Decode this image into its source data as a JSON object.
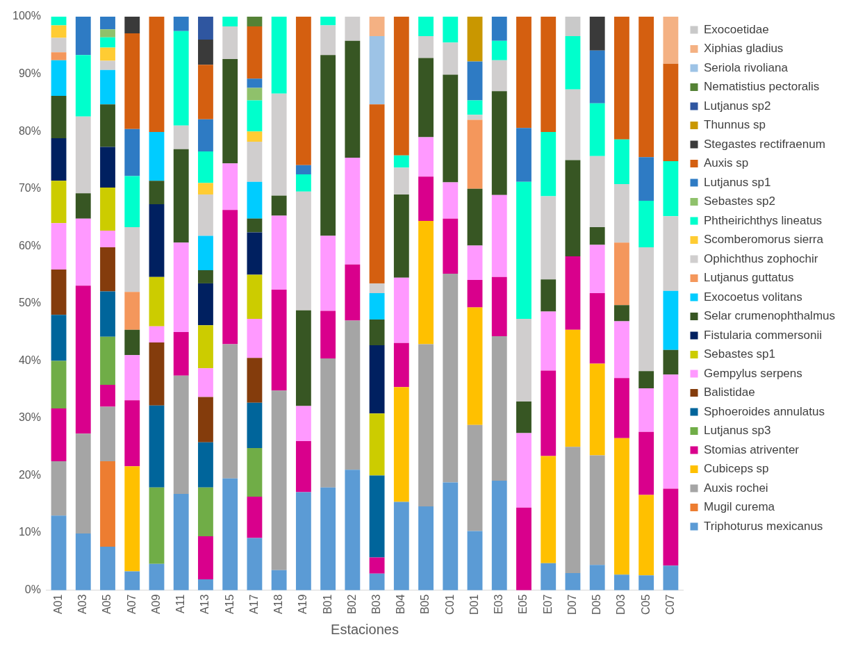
{
  "chart_data": {
    "type": "bar",
    "stacked": true,
    "xlabel": "Estaciones",
    "legend": "right",
    "grid": false,
    "categories": [
      "A01",
      "A03",
      "A05",
      "A07",
      "A09",
      "A11",
      "A13",
      "A15",
      "A17",
      "A18",
      "A19",
      "B01",
      "B02",
      "B03",
      "B04",
      "B05",
      "C01",
      "D01",
      "E03",
      "E05",
      "E07",
      "D07",
      "D05",
      "D03",
      "C05",
      "C07"
    ],
    "ylim": [
      0,
      100
    ],
    "yticks": [
      {
        "value": 0,
        "label": "0%"
      },
      {
        "value": 10,
        "label": "10%"
      },
      {
        "value": 20,
        "label": "20%"
      },
      {
        "value": 30,
        "label": "30%"
      },
      {
        "value": 40,
        "label": "40%"
      },
      {
        "value": 50,
        "label": "50%"
      },
      {
        "value": 60,
        "label": "60%"
      },
      {
        "value": 70,
        "label": "70%"
      },
      {
        "value": 80,
        "label": "80%"
      },
      {
        "value": 90,
        "label": "90%"
      },
      {
        "value": 100,
        "label": "100%"
      }
    ],
    "series": [
      {
        "name": "Triphoturus mexicanus",
        "color": "#5b9bd5",
        "values": [
          13,
          9.9,
          7.6,
          3.3,
          4.6,
          16.8,
          1.9,
          19.5,
          9.1,
          3.5,
          17.1,
          17.9,
          21,
          2.9,
          15.4,
          14.6,
          18.8,
          10.3,
          19.1,
          null,
          4.7,
          3,
          4.4,
          2.7,
          2.6,
          4.3
        ]
      },
      {
        "name": "Mugil curema",
        "color": "#ed7d31",
        "values": [
          null,
          null,
          14.9,
          null,
          null,
          null,
          null,
          null,
          null,
          null,
          null,
          null,
          null,
          null,
          null,
          null,
          null,
          null,
          null,
          null,
          null,
          null,
          null,
          null,
          null,
          null
        ]
      },
      {
        "name": "Auxis rochei",
        "color": "#a5a5a5",
        "values": [
          9.5,
          17.4,
          9.5,
          null,
          null,
          20.6,
          null,
          23.4,
          null,
          31.3,
          null,
          22.5,
          26,
          null,
          null,
          28.3,
          36.4,
          18.5,
          25.2,
          null,
          null,
          22,
          19.1,
          null,
          null,
          null
        ]
      },
      {
        "name": "Cubiceps sp",
        "color": "#ffc000",
        "values": [
          null,
          null,
          null,
          18.3,
          null,
          null,
          null,
          null,
          null,
          null,
          null,
          null,
          null,
          null,
          20,
          21.5,
          null,
          20.5,
          null,
          null,
          18.7,
          20.4,
          16,
          23.8,
          14,
          null
        ]
      },
      {
        "name": "Stomias atriventer",
        "color": "#d9008c",
        "values": [
          9.2,
          25.8,
          3.8,
          11.5,
          null,
          7.6,
          7.5,
          23.4,
          7.2,
          17.6,
          8.9,
          8.3,
          9.8,
          2.8,
          7.7,
          7.7,
          9.6,
          4.8,
          10.3,
          14.4,
          14.9,
          12.8,
          12.3,
          10.5,
          11,
          13.4
        ]
      },
      {
        "name": "Lutjanus sp3",
        "color": "#70ad47",
        "values": [
          8.3,
          null,
          8.4,
          null,
          13.3,
          null,
          8.5,
          null,
          8.5,
          null,
          null,
          null,
          null,
          null,
          null,
          null,
          null,
          null,
          null,
          null,
          null,
          null,
          null,
          null,
          null,
          null
        ]
      },
      {
        "name": "Sphoeroides annulatus",
        "color": "#00659b",
        "values": [
          8,
          null,
          7.9,
          null,
          14.3,
          null,
          7.9,
          null,
          7.9,
          null,
          null,
          null,
          null,
          14.3,
          null,
          null,
          null,
          null,
          null,
          null,
          null,
          null,
          null,
          null,
          null,
          null
        ]
      },
      {
        "name": "Balistidae",
        "color": "#843c0c",
        "values": [
          7.9,
          null,
          7.7,
          null,
          11,
          null,
          7.9,
          null,
          7.8,
          null,
          null,
          null,
          null,
          null,
          null,
          null,
          null,
          null,
          null,
          null,
          null,
          null,
          null,
          null,
          null,
          null
        ]
      },
      {
        "name": "Gempylus serpens",
        "color": "#ff99ff",
        "values": [
          8.1,
          11.7,
          2.9,
          7.9,
          2.8,
          15.6,
          5,
          8.1,
          6.8,
          12.9,
          6.1,
          13.1,
          18.6,
          null,
          11.4,
          6.9,
          6.3,
          6,
          14.3,
          13,
          10.3,
          null,
          8.4,
          9.9,
          7.6,
          19.9
        ]
      },
      {
        "name": "Sebastes sp1",
        "color": "#cccc00",
        "values": [
          7.4,
          null,
          7.5,
          null,
          8.6,
          null,
          7.5,
          null,
          7.7,
          null,
          null,
          null,
          null,
          10.8,
          null,
          null,
          null,
          null,
          null,
          null,
          null,
          null,
          null,
          null,
          null,
          null
        ]
      },
      {
        "name": "Fistularia commersonii",
        "color": "#002060",
        "values": [
          7.4,
          null,
          7.1,
          null,
          12.7,
          null,
          7.3,
          null,
          7.4,
          null,
          null,
          null,
          null,
          11.9,
          null,
          null,
          null,
          null,
          null,
          null,
          null,
          null,
          null,
          null,
          null,
          null
        ]
      },
      {
        "name": "Selar crumenophthalmus",
        "color": "#375623",
        "values": [
          7.4,
          4.4,
          7.4,
          4.4,
          4.1,
          16.3,
          2.3,
          18.2,
          2.4,
          3.5,
          16.7,
          31.5,
          20.4,
          4.5,
          14.5,
          13.8,
          18.8,
          9.9,
          18.1,
          5.5,
          5.6,
          16.8,
          3.1,
          2.8,
          3,
          4.3
        ]
      },
      {
        "name": "Exocoetus volitans",
        "color": "#00ccff",
        "values": [
          6.2,
          null,
          6,
          null,
          8.5,
          null,
          6,
          null,
          6.4,
          null,
          null,
          null,
          null,
          4.6,
          null,
          null,
          null,
          null,
          null,
          null,
          null,
          null,
          null,
          null,
          null,
          10.3
        ]
      },
      {
        "name": "Lutjanus guttatus",
        "color": "#f4975c",
        "values": [
          1.4,
          null,
          null,
          6.6,
          null,
          null,
          null,
          null,
          null,
          null,
          null,
          null,
          null,
          null,
          null,
          null,
          null,
          12,
          null,
          null,
          null,
          null,
          null,
          10.9,
          null,
          null
        ]
      },
      {
        "name": "Ophichthus zophochir",
        "color": "#d0cece",
        "values": [
          2.5,
          13.4,
          1.6,
          11.3,
          null,
          4.1,
          7.2,
          5.7,
          7,
          17.8,
          20.7,
          5.2,
          4.2,
          1.7,
          4.7,
          3.8,
          5.6,
          0.9,
          5.4,
          14.4,
          14.5,
          12.3,
          12.4,
          10.2,
          21.6,
          13
        ]
      },
      {
        "name": "Scomberomorus sierra",
        "color": "#ffcc33",
        "values": [
          2.2,
          null,
          2.3,
          null,
          null,
          null,
          2,
          null,
          1.8,
          null,
          null,
          null,
          null,
          null,
          null,
          null,
          null,
          null,
          null,
          null,
          null,
          null,
          null,
          null,
          null,
          null
        ]
      },
      {
        "name": "Phtheirichthys lineatus",
        "color": "#00ffcc",
        "values": [
          1.5,
          10.7,
          1.8,
          8.9,
          null,
          16.5,
          5.5,
          1.7,
          5.4,
          13.4,
          3,
          1.5,
          null,
          null,
          2.1,
          3.4,
          4.5,
          2.5,
          3.4,
          23.9,
          11.2,
          9.3,
          9.2,
          7.8,
          8.1,
          9.6
        ]
      },
      {
        "name": "Sebastes sp2",
        "color": "#8fc16b",
        "values": [
          null,
          null,
          1.4,
          null,
          null,
          null,
          null,
          null,
          2.2,
          null,
          null,
          null,
          null,
          null,
          null,
          null,
          null,
          null,
          null,
          null,
          null,
          null,
          null,
          null,
          null,
          null
        ]
      },
      {
        "name": "Lutjanus sp1",
        "color": "#2e7bc4",
        "values": [
          null,
          6.7,
          2.2,
          8.2,
          null,
          2.5,
          5.6,
          null,
          1.6,
          null,
          1.6,
          null,
          null,
          null,
          null,
          null,
          null,
          6.8,
          4.2,
          9.4,
          null,
          null,
          9.2,
          null,
          7.6,
          null
        ]
      },
      {
        "name": "Auxis sp",
        "color": "#d45f10",
        "values": [
          null,
          null,
          null,
          16.7,
          20.1,
          null,
          9.5,
          null,
          9.1,
          null,
          25.9,
          null,
          null,
          31.2,
          24.2,
          null,
          null,
          null,
          null,
          19.4,
          20.1,
          null,
          null,
          21.4,
          24.5,
          17
        ]
      },
      {
        "name": "Stegastes rectifraenum",
        "color": "#3a3a3a",
        "values": [
          null,
          null,
          null,
          2.9,
          null,
          null,
          4.4,
          null,
          null,
          null,
          null,
          null,
          null,
          null,
          null,
          null,
          null,
          null,
          null,
          null,
          null,
          null,
          5.9,
          null,
          null,
          null
        ]
      },
      {
        "name": "Thunnus sp",
        "color": "#c99700",
        "values": [
          null,
          null,
          null,
          null,
          null,
          null,
          null,
          null,
          null,
          null,
          null,
          null,
          null,
          null,
          null,
          null,
          null,
          7.8,
          null,
          null,
          null,
          null,
          null,
          null,
          null,
          null
        ]
      },
      {
        "name": "Lutjanus sp2",
        "color": "#2f56a0",
        "values": [
          null,
          null,
          null,
          null,
          null,
          null,
          4,
          null,
          null,
          null,
          null,
          null,
          null,
          null,
          null,
          null,
          null,
          null,
          null,
          null,
          null,
          null,
          null,
          null,
          null,
          null
        ]
      },
      {
        "name": "Nematistius pectoralis",
        "color": "#548235",
        "values": [
          null,
          null,
          null,
          null,
          null,
          null,
          null,
          null,
          1.7,
          null,
          null,
          null,
          null,
          null,
          null,
          null,
          null,
          null,
          null,
          null,
          null,
          null,
          null,
          null,
          null,
          null
        ]
      },
      {
        "name": "Seriola rivoliana",
        "color": "#9dc3e6",
        "values": [
          null,
          null,
          null,
          null,
          null,
          null,
          null,
          null,
          null,
          null,
          null,
          null,
          null,
          11.9,
          null,
          null,
          null,
          null,
          null,
          null,
          null,
          null,
          null,
          null,
          null,
          null
        ]
      },
      {
        "name": "Xiphias gladius",
        "color": "#f4b183",
        "values": [
          null,
          null,
          null,
          null,
          null,
          null,
          null,
          null,
          null,
          null,
          null,
          null,
          null,
          3.4,
          null,
          null,
          null,
          null,
          null,
          null,
          null,
          null,
          null,
          null,
          null,
          8.2
        ]
      },
      {
        "name": "Exocoetidae",
        "color": "#c9c9c9",
        "values": [
          null,
          null,
          null,
          null,
          null,
          null,
          null,
          null,
          null,
          null,
          null,
          null,
          null,
          null,
          null,
          null,
          null,
          null,
          null,
          null,
          null,
          3.4,
          null,
          null,
          null,
          null
        ]
      }
    ]
  }
}
